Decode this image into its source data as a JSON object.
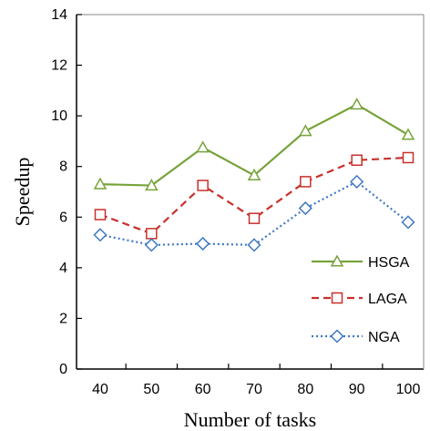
{
  "chart_data": {
    "type": "line",
    "xlabel": "Number of tasks",
    "ylabel": "Speedup",
    "categories": [
      "40",
      "50",
      "60",
      "70",
      "80",
      "90",
      "100"
    ],
    "ylim": [
      0,
      14
    ],
    "yticks": [
      "0",
      "2",
      "4",
      "6",
      "8",
      "10",
      "12",
      "14"
    ],
    "grid": false,
    "legend_position": "lower-right",
    "series": [
      {
        "name": "HSGA",
        "values": [
          7.3,
          7.25,
          8.75,
          7.65,
          9.4,
          10.45,
          9.25
        ],
        "color": "#77a33a",
        "marker": "triangle",
        "line_style": "solid"
      },
      {
        "name": "LAGA",
        "values": [
          6.1,
          5.35,
          7.25,
          5.95,
          7.4,
          8.25,
          8.35
        ],
        "color": "#c8302b",
        "marker": "square",
        "line_style": "dashed"
      },
      {
        "name": "NGA",
        "values": [
          5.3,
          4.9,
          4.95,
          4.9,
          6.35,
          7.4,
          5.8
        ],
        "color": "#3f78c4",
        "marker": "diamond",
        "line_style": "dotted"
      }
    ]
  }
}
